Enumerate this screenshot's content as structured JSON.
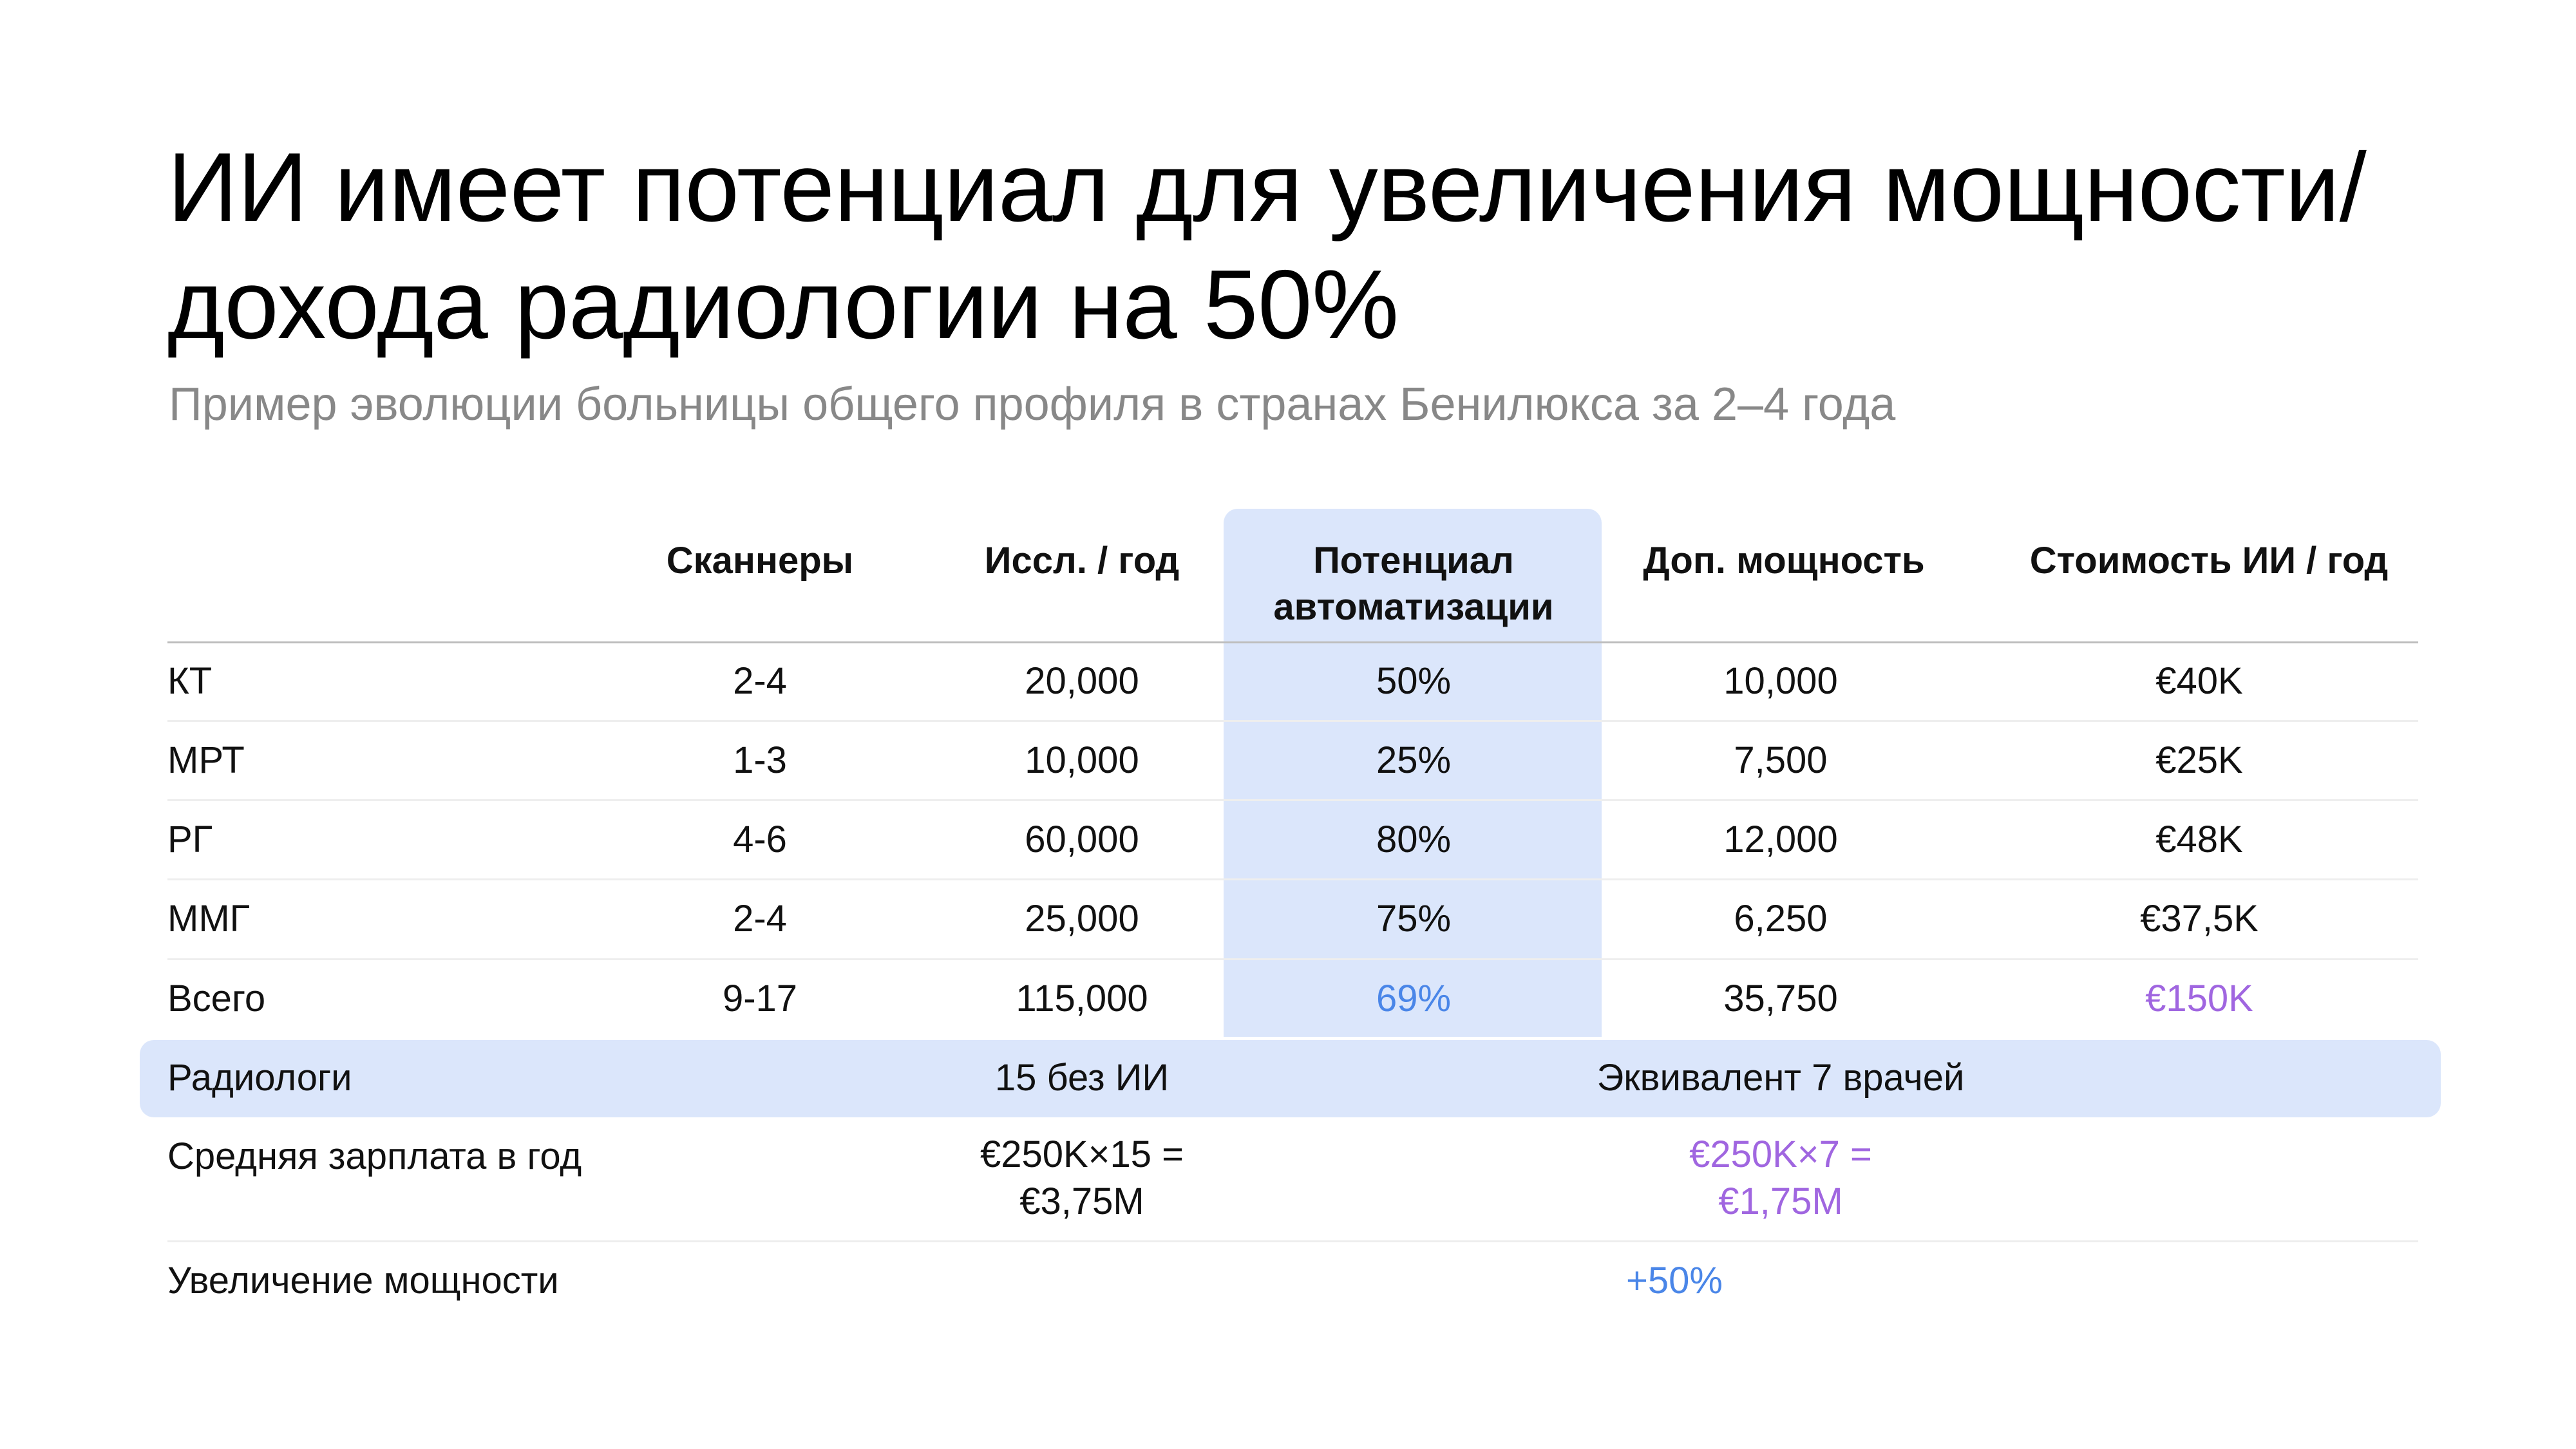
{
  "title": "ИИ имеет потенциал для увеличения мощности/дохода радиологии на 50%",
  "subtitle": "Пример эволюции больницы общего профиля в странах Бенилюкса за 2–4 года",
  "colors": {
    "highlight": "#dbe6fb",
    "accent_blue": "#4a86e8",
    "accent_purple": "#a066e0"
  },
  "table": {
    "headers": [
      "Сканнеры",
      "Иссл. / год",
      "Потенциал автоматизации",
      "Доп. мощность",
      "Стоимость ИИ / год"
    ],
    "rows": [
      {
        "label": "КТ",
        "scanners": "2-4",
        "studies": "20,000",
        "automation": "50%",
        "capacity": "10,000",
        "ai_cost": "€40K"
      },
      {
        "label": "МРТ",
        "scanners": "1-3",
        "studies": "10,000",
        "automation": "25%",
        "capacity": "7,500",
        "ai_cost": "€25K"
      },
      {
        "label": "РГ",
        "scanners": "4-6",
        "studies": "60,000",
        "automation": "80%",
        "capacity": "12,000",
        "ai_cost": "€48K"
      },
      {
        "label": "ММГ",
        "scanners": "2-4",
        "studies": "25,000",
        "automation": "75%",
        "capacity": "6,250",
        "ai_cost": "€37,5K"
      },
      {
        "label": "Всего",
        "scanners": "9-17",
        "studies": "115,000",
        "automation": "69%",
        "capacity": "35,750",
        "ai_cost": "€150K"
      }
    ],
    "radiologists": {
      "label": "Радиологи",
      "without_ai": "15 без ИИ",
      "equivalent": "Эквивалент 7 врачей"
    },
    "salary": {
      "label": "Средняя зарплата в год",
      "without_ai_line1": "€250K×15 =",
      "without_ai_line2": "€3,75M",
      "with_ai_line1": "€250K×7 =",
      "with_ai_line2": "€1,75M"
    },
    "capacity_increase": {
      "label": "Увеличение мощности",
      "value": "+50%"
    }
  }
}
